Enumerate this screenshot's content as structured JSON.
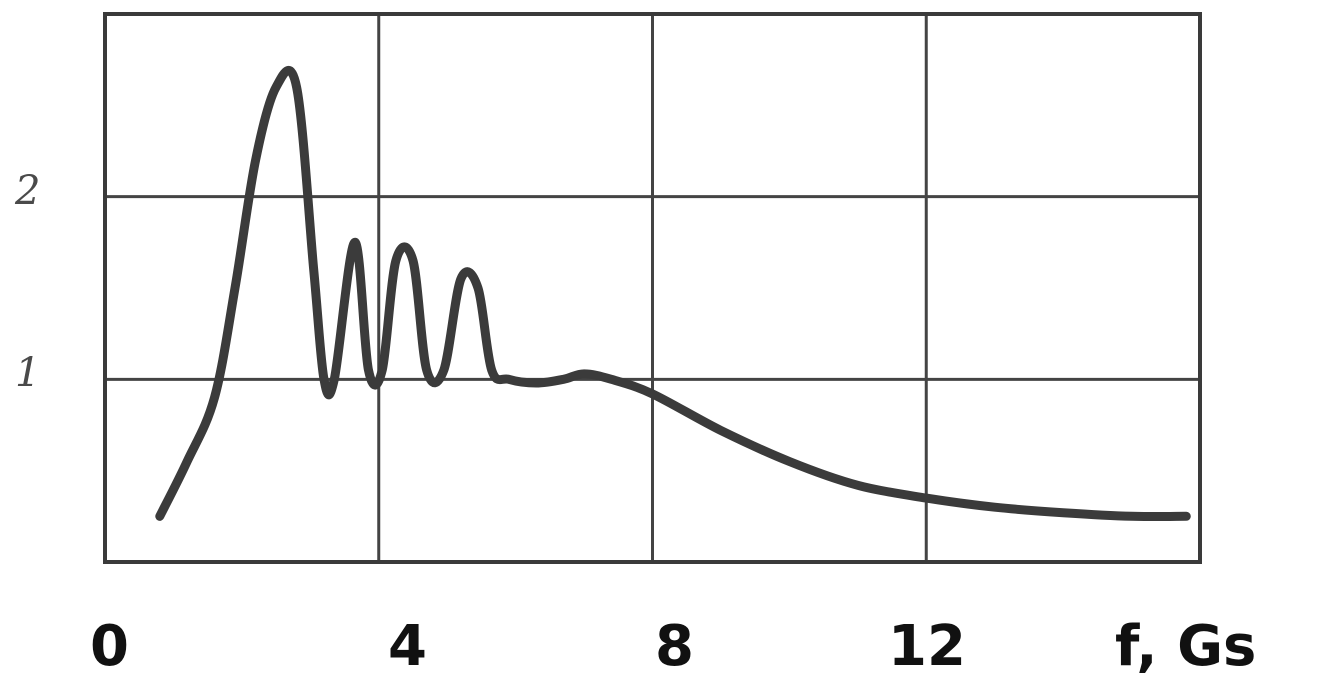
{
  "chart_data": {
    "type": "line",
    "title": "",
    "xlabel": "f, Gs",
    "ylabel": "",
    "xlim": [
      0,
      16
    ],
    "ylim": [
      0,
      3
    ],
    "x_ticks": [
      "0",
      "4",
      "8",
      "12"
    ],
    "y_ticks": [
      "1",
      "2"
    ],
    "grid": true,
    "series": [
      {
        "name": "",
        "x": [
          0.8,
          1.2,
          1.6,
          1.9,
          2.2,
          2.5,
          2.8,
          3.05,
          3.2,
          3.35,
          3.65,
          3.85,
          4.05,
          4.25,
          4.5,
          4.7,
          4.95,
          5.2,
          5.45,
          5.65,
          5.9,
          6.3,
          6.7,
          7.0,
          7.4,
          8.0,
          9.0,
          10.0,
          11.0,
          12.0,
          13.0,
          14.0,
          15.0,
          15.8
        ],
        "y": [
          0.25,
          0.55,
          0.9,
          1.5,
          2.2,
          2.6,
          2.6,
          1.6,
          1.0,
          1.0,
          1.75,
          1.05,
          1.05,
          1.65,
          1.65,
          1.05,
          1.05,
          1.55,
          1.5,
          1.05,
          1.0,
          0.98,
          1.0,
          1.03,
          1.0,
          0.92,
          0.72,
          0.55,
          0.42,
          0.35,
          0.3,
          0.27,
          0.25,
          0.25
        ]
      }
    ]
  }
}
